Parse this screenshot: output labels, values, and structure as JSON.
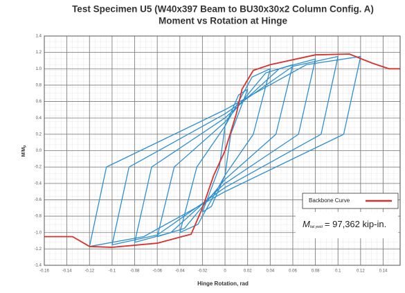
{
  "chart_data": {
    "type": "line",
    "title": "Test Specimen U5 (W40x397 Beam to BU30x30x2 Column Config. A)",
    "subtitle": "Moment vs Rotation at Hinge",
    "x_label": "Hinge Rotation, rad",
    "y_label": {
      "main": "M/M",
      "sub": "p"
    },
    "xlim": [
      -0.16,
      0.155
    ],
    "ylim": [
      -1.4,
      1.4
    ],
    "xticks": [
      -0.16,
      -0.14,
      -0.12,
      -0.1,
      -0.08,
      -0.06,
      -0.04,
      -0.02,
      0,
      0.02,
      0.04,
      0.06,
      0.08,
      0.1,
      0.12,
      0.14
    ],
    "yticks": [
      1.4,
      1.2,
      {
        "value": 1,
        "label": "1.0"
      },
      0.8,
      0.6,
      0.4,
      0.2,
      {
        "value": 0,
        "label": "0.0"
      },
      -0.2,
      -0.4,
      -0.6,
      -0.8,
      {
        "value": -1,
        "label": "-1.0"
      },
      -1.2,
      -1.4
    ],
    "grid": true,
    "legend": "lower right",
    "annotation": {
      "symbol": "M",
      "subscript": "fail yield",
      "text": "= 97,362 kip-in."
    },
    "series": [
      {
        "color": "#2b8fd1",
        "x": [
          -0.02,
          -0.005,
          0,
          0.012,
          0.02,
          0.005,
          0,
          -0.012,
          -0.02
        ],
        "values": [
          -0.75,
          -0.2,
          0.3,
          0.68,
          0.75,
          0.2,
          -0.3,
          -0.68,
          -0.75
        ]
      },
      {
        "color": "#2b8fd1",
        "x": [
          -0.04,
          -0.025,
          0,
          0.024,
          0.04,
          0.025,
          0,
          -0.024,
          -0.04
        ],
        "values": [
          -1,
          -0.2,
          0.3,
          0.9,
          1,
          0.2,
          -0.3,
          -0.9,
          -1
        ]
      },
      {
        "color": "#2b8fd1",
        "x": [
          -0.06,
          -0.045,
          0,
          0.036,
          0.06,
          0.045,
          0,
          -0.036,
          -0.06
        ],
        "values": [
          -1.05,
          -0.2,
          0.35,
          0.95,
          1.05,
          0.2,
          -0.35,
          -0.95,
          -1.05
        ]
      },
      {
        "color": "#2b8fd1",
        "x": [
          -0.08,
          -0.065,
          0,
          0.048,
          0.08,
          0.065,
          0,
          -0.048,
          -0.08
        ],
        "values": [
          -1.12,
          -0.2,
          0.4,
          1,
          1.12,
          0.2,
          -0.4,
          -1,
          -1.12
        ]
      },
      {
        "color": "#2b8fd1",
        "x": [
          -0.1,
          -0.085,
          0,
          0.06,
          0.1,
          0.085,
          0,
          -0.06,
          -0.1
        ],
        "values": [
          -1.15,
          -0.2,
          0.45,
          1.03,
          1.15,
          0.2,
          -0.45,
          -1.03,
          -1.15
        ]
      },
      {
        "color": "#2b8fd1",
        "x": [
          -0.12,
          -0.105,
          0,
          0.072,
          0.12,
          0.105,
          0,
          -0.072,
          -0.12
        ],
        "values": [
          -1.17,
          -0.2,
          0.5,
          1.05,
          1.15,
          0.2,
          -0.5,
          -1.05,
          -1.17
        ]
      },
      {
        "name": "Backbone Curve",
        "color": "#d9302c",
        "x": [
          -0.16,
          -0.135,
          -0.12,
          -0.1,
          -0.06,
          -0.03,
          -0.02,
          -0.01,
          0,
          0.01,
          0.015,
          0.025,
          0.04,
          0.08,
          0.11,
          0.13,
          0.145,
          0.155
        ],
        "values": [
          -1.05,
          -1.05,
          -1.17,
          -1.18,
          -1.13,
          -1.02,
          -0.7,
          -0.3,
          0,
          0.45,
          0.75,
          0.98,
          1.05,
          1.17,
          1.18,
          1.07,
          1,
          1
        ]
      }
    ]
  }
}
